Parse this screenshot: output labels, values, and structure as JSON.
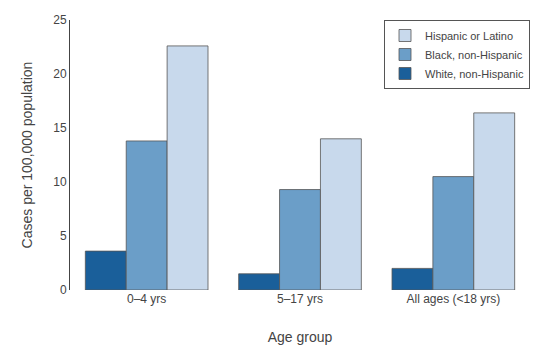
{
  "chart_data": {
    "type": "bar",
    "categories": [
      "0–4 yrs",
      "5–17 yrs",
      "All ages (<18 yrs)"
    ],
    "series": [
      {
        "name": "White, non-Hispanic",
        "color": "#1a5f9a",
        "values": [
          3.6,
          1.5,
          2.0
        ]
      },
      {
        "name": "Black, non-Hispanic",
        "color": "#6b9ec8",
        "values": [
          13.8,
          9.3,
          10.5
        ]
      },
      {
        "name": "Hispanic or Latino",
        "color": "#c8d9ec",
        "values": [
          22.6,
          14.0,
          16.4
        ]
      }
    ],
    "xlabel": "Age group",
    "ylabel": "Cases per 100,000 population",
    "ylim": [
      0,
      25
    ],
    "yticks": [
      0,
      5,
      10,
      15,
      20,
      25
    ],
    "grid": false,
    "legend": "upper right"
  }
}
